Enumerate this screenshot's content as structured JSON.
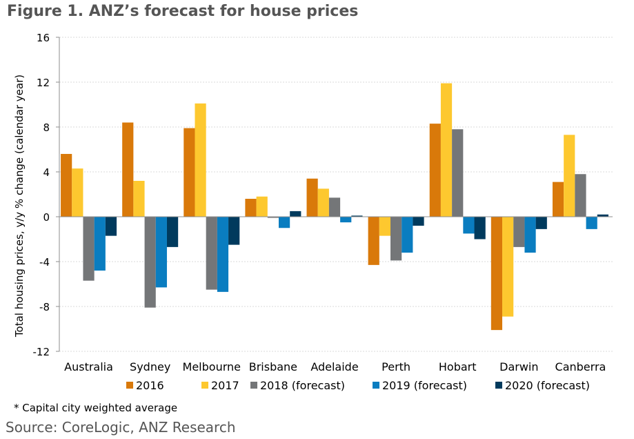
{
  "figure": {
    "title": "Figure 1. ANZ’s forecast for house prices",
    "footnote": "* Capital city weighted average",
    "source": "Source: CoreLogic, ANZ Research"
  },
  "chart_data": {
    "type": "bar",
    "title": "Figure 1. ANZ’s forecast for house prices",
    "xlabel": "",
    "ylabel": "Total housing prices, y/y % change (calendar year)",
    "ylim": [
      -12,
      16
    ],
    "yticks": [
      -12,
      -8,
      -4,
      0,
      4,
      8,
      12,
      16
    ],
    "ytick_labels": [
      "-12",
      "-8",
      "-4",
      "0",
      "4",
      "8",
      "12",
      "16"
    ],
    "grid": true,
    "legend_position": "bottom",
    "categories": [
      "Australia",
      "Sydney",
      "Melbourne",
      "Brisbane",
      "Adelaide",
      "Perth",
      "Hobart",
      "Darwin",
      "Canberra"
    ],
    "series": [
      {
        "name": "2016",
        "color": "#D9790A",
        "values": [
          5.6,
          8.4,
          7.9,
          1.6,
          3.4,
          -4.3,
          8.3,
          -10.1,
          3.1
        ]
      },
      {
        "name": "2017",
        "color": "#FDC82F",
        "values": [
          4.3,
          3.2,
          10.1,
          1.8,
          2.5,
          -1.7,
          11.9,
          -8.9,
          7.3
        ]
      },
      {
        "name": "2018 (forecast)",
        "color": "#747678",
        "values": [
          -5.7,
          -8.1,
          -6.5,
          -0.1,
          1.7,
          -3.9,
          7.8,
          -2.7,
          3.8
        ]
      },
      {
        "name": "2019 (forecast)",
        "color": "#0A7DC0",
        "values": [
          -4.8,
          -6.3,
          -6.7,
          -1.0,
          -0.5,
          -3.2,
          -1.5,
          -3.2,
          -1.1
        ]
      },
      {
        "name": "2020 (forecast)",
        "color": "#003A5D",
        "values": [
          -1.7,
          -2.7,
          -2.5,
          0.5,
          0.1,
          -0.8,
          -2.0,
          -1.1,
          0.2
        ]
      }
    ]
  }
}
